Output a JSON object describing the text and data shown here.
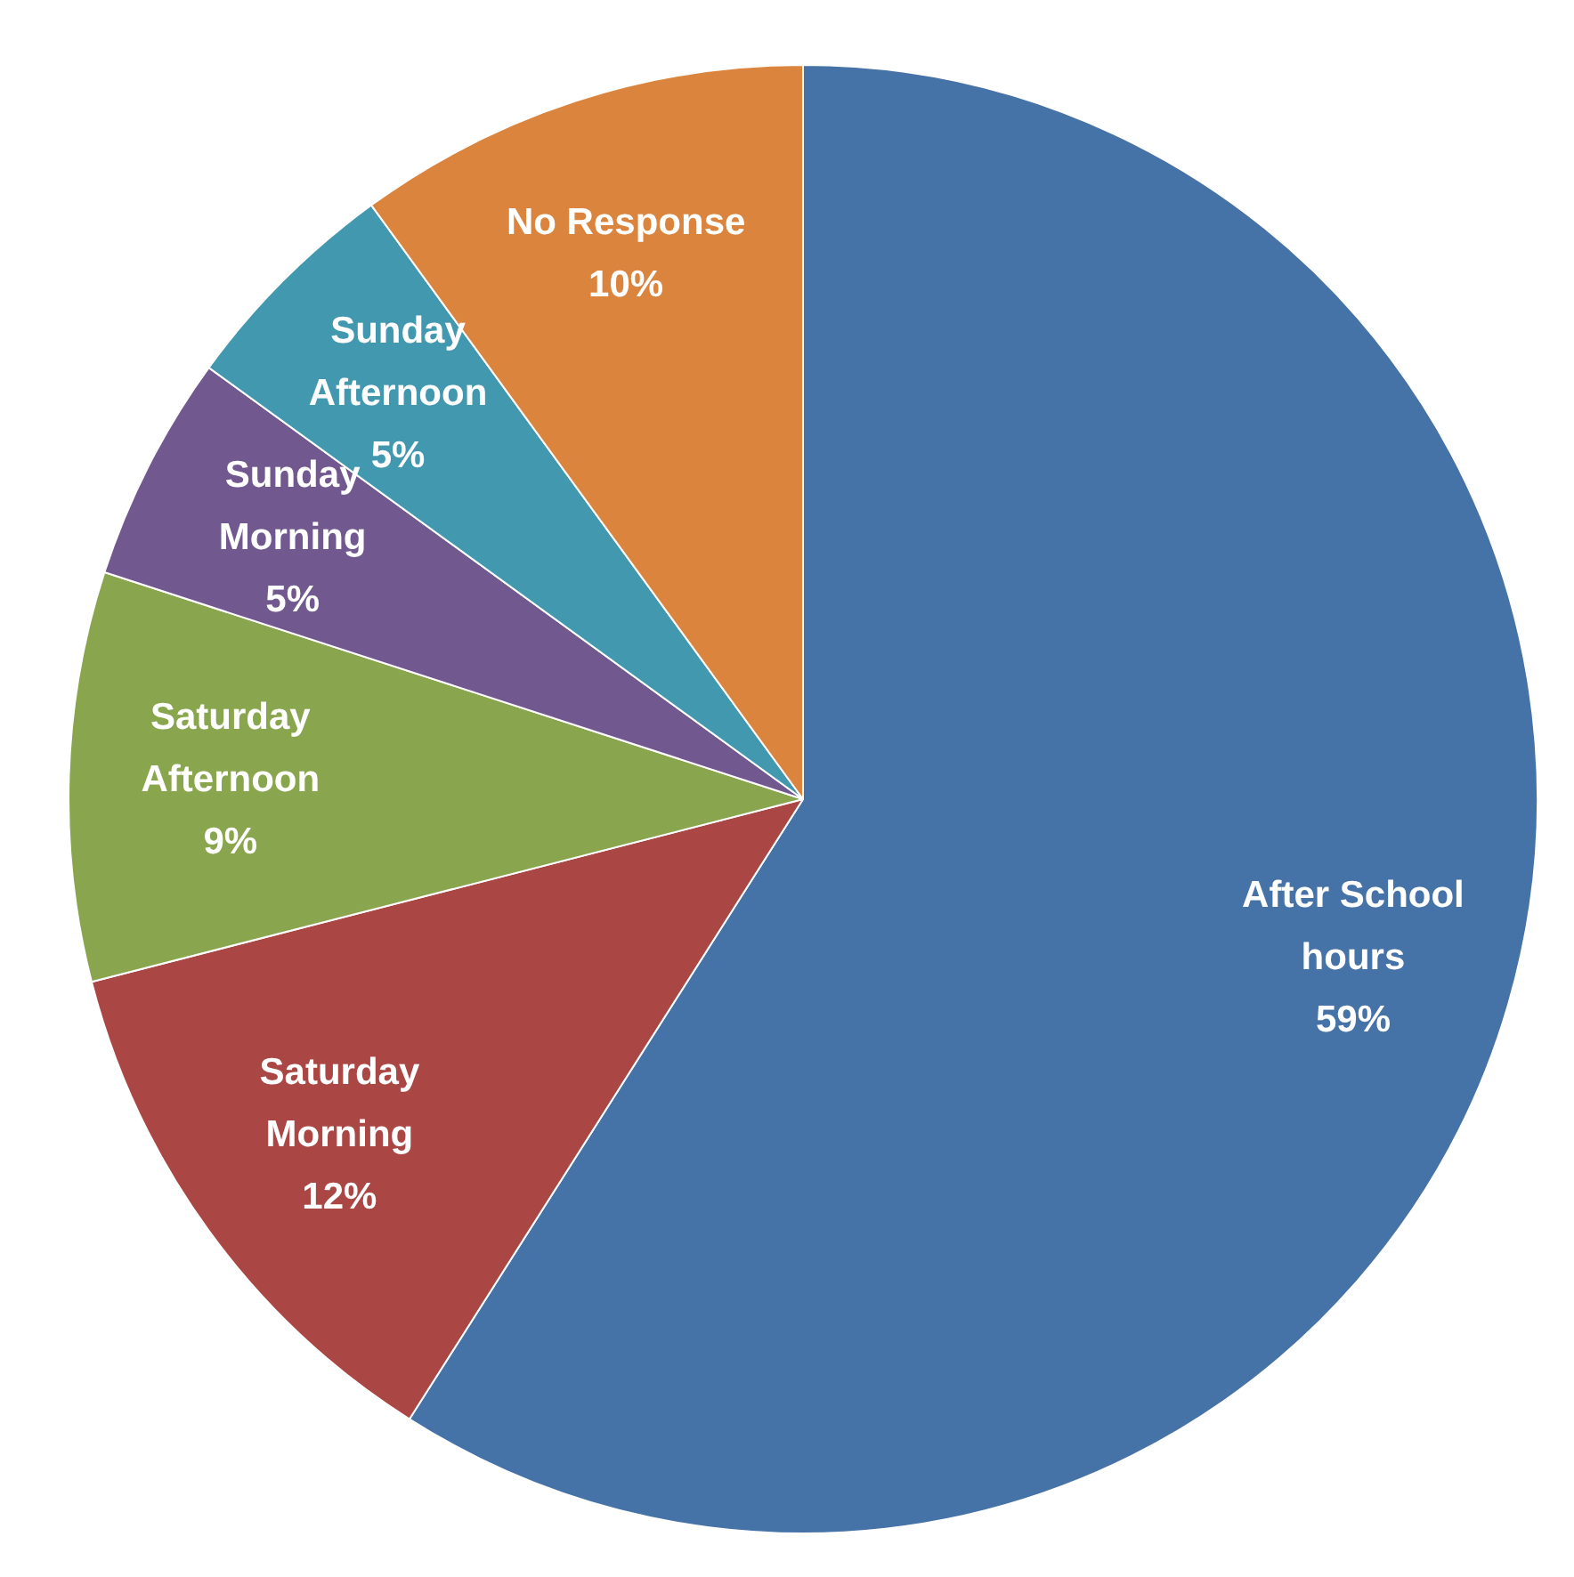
{
  "chart_data": {
    "type": "pie",
    "categories": [
      "After School hours",
      "Saturday Morning",
      "Saturday Afternoon",
      "Sunday Morning",
      "Sunday Afternoon",
      "No Response"
    ],
    "values": [
      59,
      12,
      9,
      5,
      5,
      10
    ],
    "value_labels": [
      "59%",
      "12%",
      "9%",
      "5%",
      "5%",
      "10%"
    ],
    "colors": [
      "#4572a7",
      "#aa4643",
      "#89a54e",
      "#71588f",
      "#4198af",
      "#db843d"
    ],
    "legend": false
  }
}
